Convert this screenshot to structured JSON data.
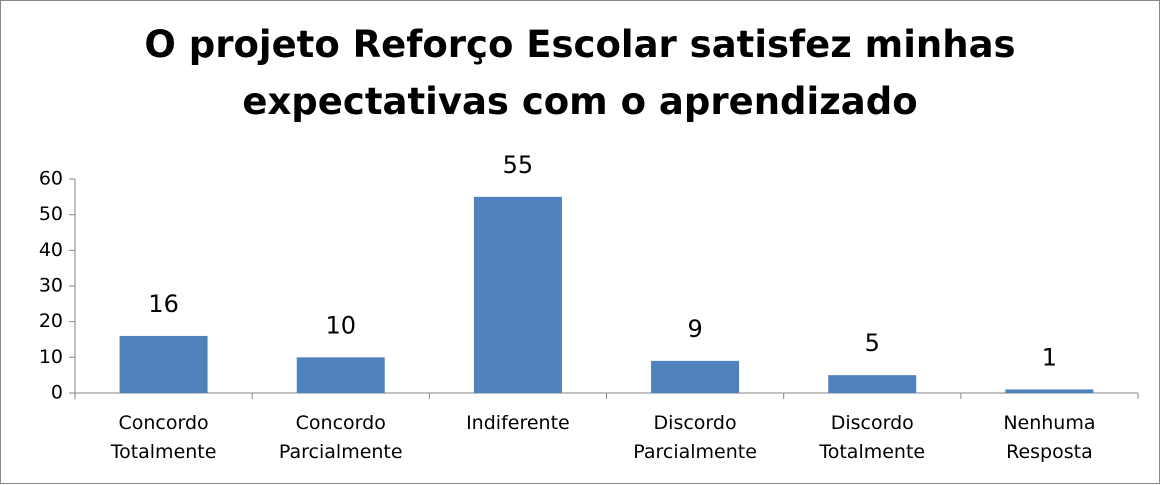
{
  "chart_data": {
    "type": "bar",
    "title": "O projeto Reforço Escolar satisfez minhas expectativas com o aprendizado",
    "categories": [
      "Concordo Totalmente",
      "Concordo Parcialmente",
      "Indiferente",
      "Discordo Parcialmente",
      "Discordo Totalmente",
      "Nenhuma Resposta"
    ],
    "values": [
      16,
      10,
      55,
      9,
      5,
      1
    ],
    "color": "#4f81bd",
    "ylim": [
      0,
      60
    ],
    "yticks": [
      0,
      10,
      20,
      30,
      40,
      50,
      60
    ],
    "grid": false
  }
}
